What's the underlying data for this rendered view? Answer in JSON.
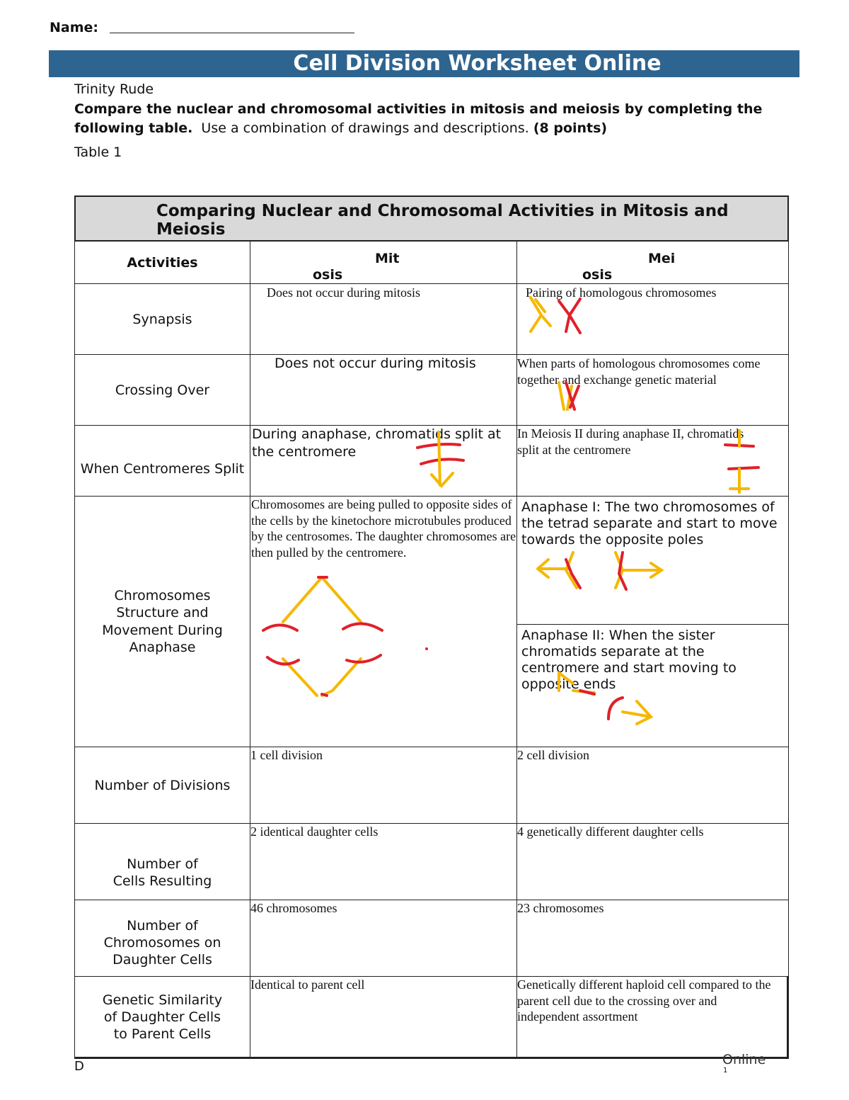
{
  "header": {
    "name_label": "Name:",
    "title": "Cell Division Worksheet Online"
  },
  "intro": {
    "student": "Trinity Rude",
    "instruction_bold": "Compare the nuclear and chromosomal activities in mitosis and meiosis by completing the following table.",
    "instruction_plain": "Use a combination of drawings and descriptions.",
    "points": "(8 points)",
    "table_label": "Table 1"
  },
  "table": {
    "title": "Comparing Nuclear and Chromosomal Activities in Mitosis and Meiosis",
    "headers": {
      "activities": "Activities",
      "mitosis_a": "Mit",
      "mitosis_b": "osis",
      "meiosis_a": "Mei",
      "meiosis_b": "osis"
    },
    "rows": [
      {
        "activity": "Synapsis",
        "mitosis": "Does not occur during mitosis",
        "meiosis": "Pairing of homologous chromosomes"
      },
      {
        "activity": "Crossing Over",
        "mitosis": "Does not occur during mitosis",
        "meiosis": "When parts of homologous chromosomes come together and exchange genetic material"
      },
      {
        "activity": "When Centromeres Split",
        "mitosis": "During anaphase, chromatids split at the centromere",
        "meiosis": "In Meiosis II during anaphase II, chromatids split at the centromere"
      },
      {
        "activity": "Chromosomes Structure and Movement During Anaphase",
        "mitosis": "Chromosomes are being pulled to opposite sides of the cells by the kinetochore microtubules produced by the centrosomes. The daughter chromosomes are then pulled by the centromere.",
        "meiosis_1": "Anaphase I: The two chromosomes of the tetrad separate and start to move towards the opposite poles",
        "meiosis_2": "Anaphase II: When the sister chromatids separate at the centromere and start moving to opposite ends"
      },
      {
        "activity": "Number of Divisions",
        "mitosis": "1 cell division",
        "meiosis": "2 cell division"
      },
      {
        "activity": "Number of Cells Resulting",
        "mitosis": "2 identical daughter cells",
        "meiosis": "4 genetically different daughter cells"
      },
      {
        "activity": "Number of Chromosomes on Daughter Cells",
        "mitosis": "46 chromosomes",
        "meiosis": "23 chromosomes"
      },
      {
        "activity": "Genetic Similarity of Daughter Cells to Parent Cells",
        "mitosis": "Identical to parent cell",
        "meiosis": "Genetically different haploid cell compared to the parent cell due to the crossing over and independent assortment"
      }
    ]
  },
  "footer": {
    "left": "D",
    "right": "Online",
    "page": "1"
  },
  "colors": {
    "banner": "#2e6490",
    "table_title_bg": "#d9d9d9",
    "drawing_red": "#e0202a",
    "drawing_yellow": "#f5b800"
  }
}
